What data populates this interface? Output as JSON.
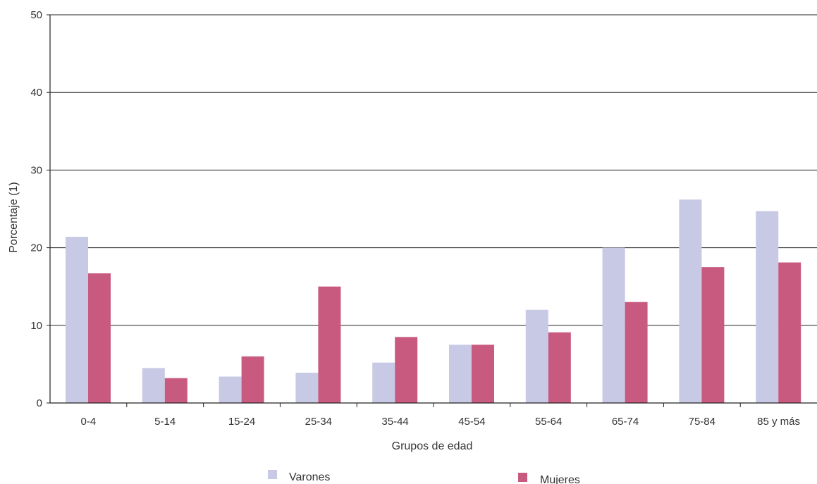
{
  "chart_data": {
    "type": "bar",
    "title": "",
    "xlabel": "Grupos de edad",
    "ylabel": "Porcentaje (1)",
    "ylim": [
      0,
      50
    ],
    "yticks": [
      0,
      10,
      20,
      30,
      40,
      50
    ],
    "grid": true,
    "legend_position": "bottom",
    "categories": [
      "0-4",
      "5-14",
      "15-24",
      "25-34",
      "35-44",
      "45-54",
      "55-64",
      "65-74",
      "75-84",
      "85 y más"
    ],
    "series": [
      {
        "name": "Varones",
        "color": "#c8c9e4",
        "values": [
          21.4,
          4.5,
          3.4,
          3.9,
          5.2,
          7.5,
          12.0,
          20.0,
          26.2,
          24.7
        ]
      },
      {
        "name": "Mujeres",
        "color": "#c85a7f",
        "values": [
          16.7,
          3.2,
          6.0,
          15.0,
          8.5,
          7.5,
          9.1,
          13.0,
          17.5,
          18.1
        ]
      }
    ]
  }
}
